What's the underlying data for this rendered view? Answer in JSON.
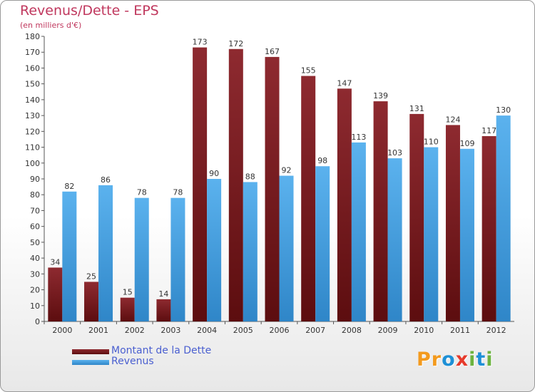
{
  "chart_data": {
    "type": "bar",
    "title": "Revenus/Dette - EPS",
    "subtitle": "(en milliers d'€)",
    "categories": [
      "2000",
      "2001",
      "2002",
      "2003",
      "2004",
      "2005",
      "2006",
      "2007",
      "2008",
      "2009",
      "2010",
      "2011",
      "2012"
    ],
    "series": [
      {
        "name": "Montant de la Dette",
        "color": "#7a1a1c",
        "values": [
          34,
          25,
          15,
          14,
          173,
          172,
          167,
          155,
          147,
          139,
          131,
          124,
          117
        ]
      },
      {
        "name": "Revenus",
        "color": "#4ea3e0",
        "values": [
          82,
          86,
          78,
          78,
          90,
          88,
          92,
          98,
          113,
          103,
          110,
          109,
          130
        ]
      }
    ],
    "ylim": [
      0,
      180
    ],
    "ytick_step": 10,
    "grid": false,
    "legend_position": "bottom-left"
  },
  "logo": {
    "text": "Proxiti",
    "letter_colors": [
      "#f39a1e",
      "#f39a1e",
      "#1e90d6",
      "#e63a2b",
      "#6cb33f",
      "#1e90d6",
      "#6cb33f"
    ]
  }
}
